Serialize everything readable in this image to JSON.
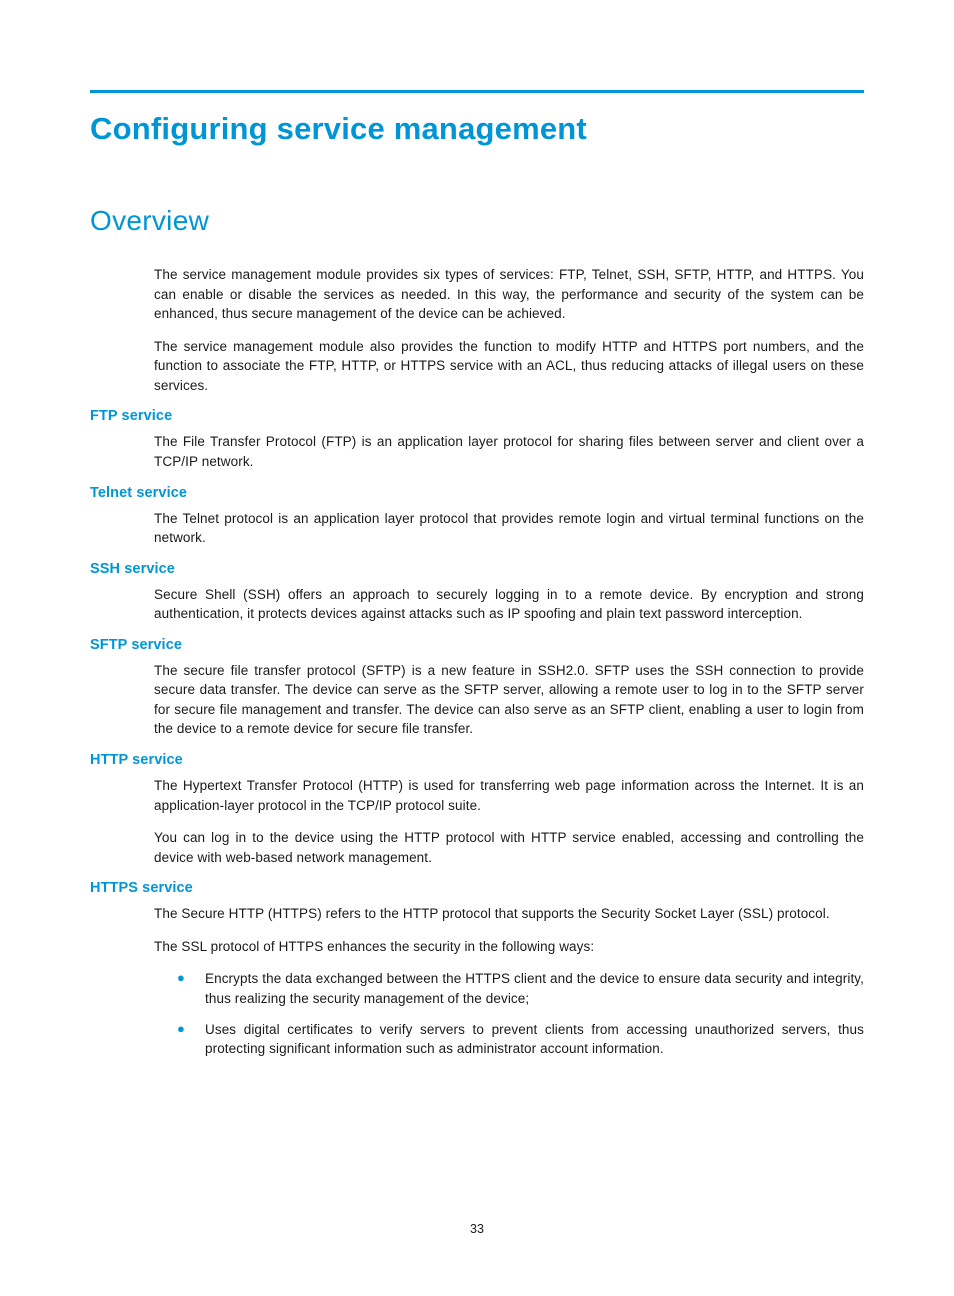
{
  "colors": {
    "accent": "#0096d6",
    "text": "#1a1a1a",
    "background": "#ffffff"
  },
  "typography": {
    "h1_fontsize": 31,
    "h1_weight": "bold",
    "h2_fontsize": 28,
    "h2_weight": "normal",
    "h3_fontsize": 14.5,
    "h3_weight": "bold",
    "body_fontsize": 13.5,
    "body_lineheight": 1.45
  },
  "page_number": "33",
  "title": "Configuring service management",
  "section_heading": "Overview",
  "intro": {
    "p1": "The service management module provides six types of services: FTP, Telnet, SSH, SFTP, HTTP, and HTTPS. You can enable or disable the services as needed. In this way, the performance and security of the system can be enhanced, thus secure management of the device can be achieved.",
    "p2": "The service management module also provides the function to modify HTTP and HTTPS port numbers, and the function to associate the FTP, HTTP, or HTTPS service with an ACL, thus reducing attacks of illegal users on these services."
  },
  "sections": {
    "ftp": {
      "heading": "FTP service",
      "p1": "The File Transfer Protocol (FTP) is an application layer protocol for sharing files between server and client over a TCP/IP network."
    },
    "telnet": {
      "heading": "Telnet service",
      "p1": "The Telnet protocol is an application layer protocol that provides remote login and virtual terminal functions on the network."
    },
    "ssh": {
      "heading": "SSH service",
      "p1": "Secure Shell (SSH) offers an approach to securely logging in to a remote device. By encryption and strong authentication, it protects devices against attacks such as IP spoofing and plain text password interception."
    },
    "sftp": {
      "heading": "SFTP service",
      "p1": "The secure file transfer protocol (SFTP) is a new feature in SSH2.0. SFTP uses the SSH connection to provide secure data transfer. The device can serve as the SFTP server, allowing a remote user to log in to the SFTP server for secure file management and transfer. The device can also serve as an SFTP client, enabling a user to login from the device to a remote device for secure file transfer."
    },
    "http": {
      "heading": "HTTP service",
      "p1": "The Hypertext Transfer Protocol (HTTP) is used for transferring web page information across the Internet. It is an application-layer protocol in the TCP/IP protocol suite.",
      "p2": "You can log in to the device using the HTTP protocol with HTTP service enabled, accessing and controlling the device with web-based network management."
    },
    "https": {
      "heading": "HTTPS service",
      "p1": "The Secure HTTP (HTTPS) refers to the HTTP protocol that supports the Security Socket Layer (SSL) protocol.",
      "p2": "The SSL protocol of HTTPS enhances the security in the following ways:",
      "bullets": [
        "Encrypts the data exchanged between the HTTPS client and the device to ensure data security and integrity, thus realizing the security management of the device;",
        "Uses digital certificates to verify servers to prevent clients from accessing unauthorized servers, thus protecting significant information such as administrator account information."
      ]
    }
  }
}
